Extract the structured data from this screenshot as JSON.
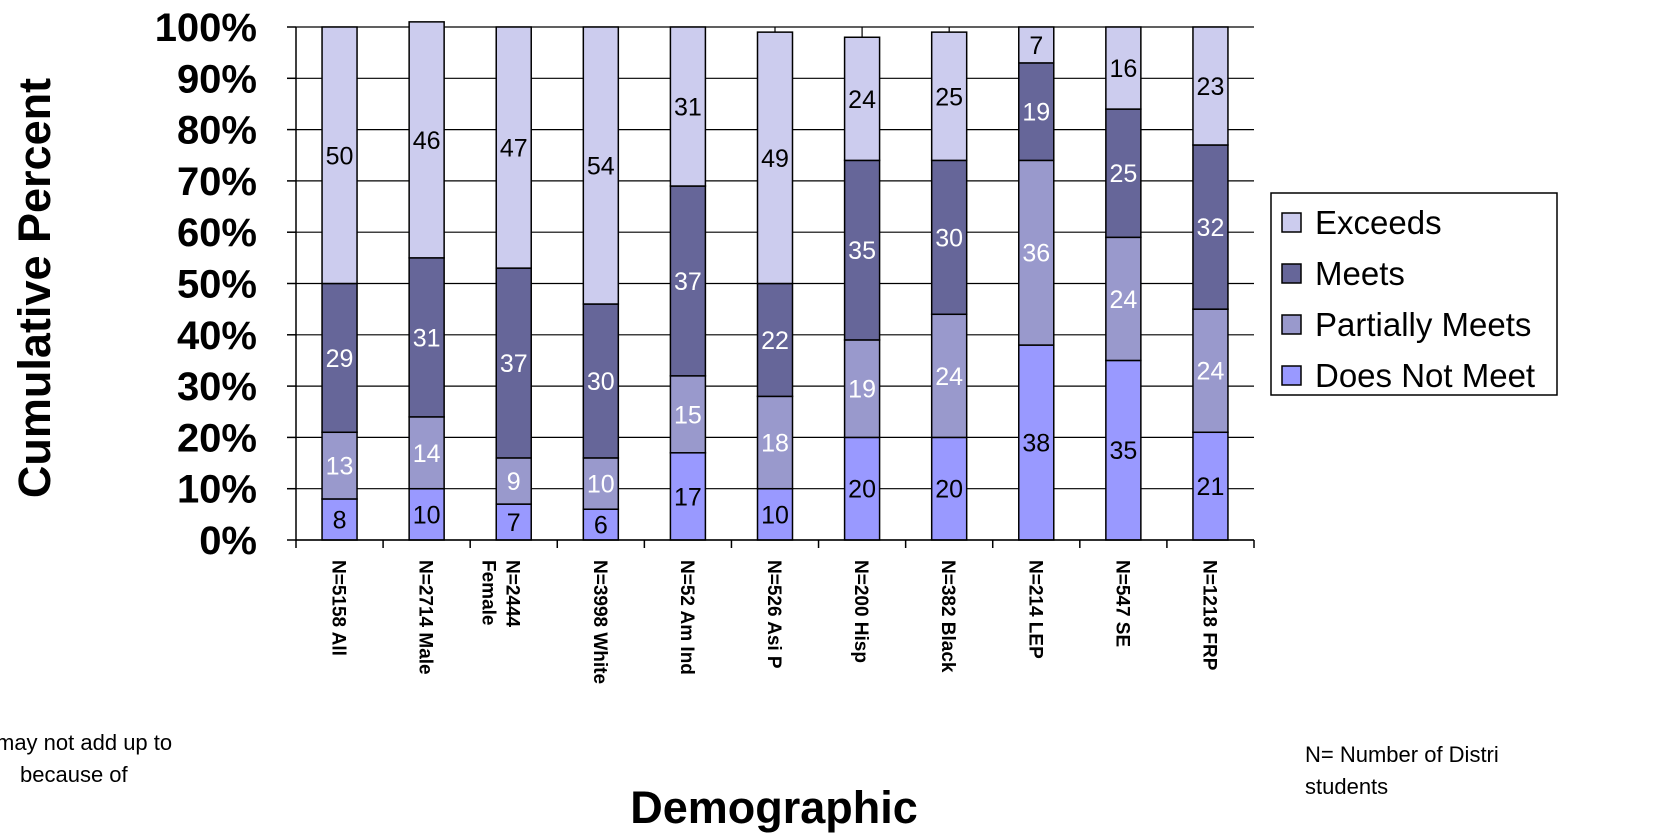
{
  "chart_data": {
    "type": "bar",
    "stacked": true,
    "title": "",
    "xlabel": "Demographic",
    "ylabel": "Cumulative Percent",
    "ylim": [
      0,
      100
    ],
    "y_tick_labels": [
      "0%",
      "10%",
      "20%",
      "30%",
      "40%",
      "50%",
      "60%",
      "70%",
      "80%",
      "90%",
      "100%"
    ],
    "grid": true,
    "legend_position": "right",
    "categories": [
      [
        "N=5158 All"
      ],
      [
        "N=2714 Male"
      ],
      [
        "N=2444",
        "Female"
      ],
      [
        "N=3998 White"
      ],
      [
        "N=52 Am Ind"
      ],
      [
        "N=526 Asi P"
      ],
      [
        "N=200 Hisp"
      ],
      [
        "N=382 Black"
      ],
      [
        "N=214 LEP"
      ],
      [
        "N=547 SE"
      ],
      [
        "N=1218 FRP"
      ]
    ],
    "series": [
      {
        "name": "Does Not Meet",
        "color": "#9999ff",
        "label_color": "#000000",
        "values": [
          8,
          10,
          7,
          6,
          17,
          10,
          20,
          20,
          38,
          35,
          21
        ]
      },
      {
        "name": "Partially Meets",
        "color": "#9999cc",
        "label_color": "#ffffff",
        "values": [
          13,
          14,
          9,
          10,
          15,
          18,
          19,
          24,
          36,
          24,
          24
        ]
      },
      {
        "name": "Meets",
        "color": "#666699",
        "label_color": "#ffffff",
        "values": [
          29,
          31,
          37,
          30,
          37,
          22,
          35,
          30,
          19,
          25,
          32
        ]
      },
      {
        "name": "Exceeds",
        "color": "#ccccee",
        "label_color": "#000000",
        "values": [
          50,
          46,
          47,
          54,
          31,
          49,
          24,
          25,
          7,
          16,
          23
        ]
      }
    ],
    "legend_order": [
      "Exceeds",
      "Meets",
      "Partially Meets",
      "Does Not Meet"
    ]
  },
  "footnotes": {
    "left": [
      "may not add up to",
      "because of"
    ],
    "right": [
      "N= Number of Distri",
      "students"
    ]
  }
}
